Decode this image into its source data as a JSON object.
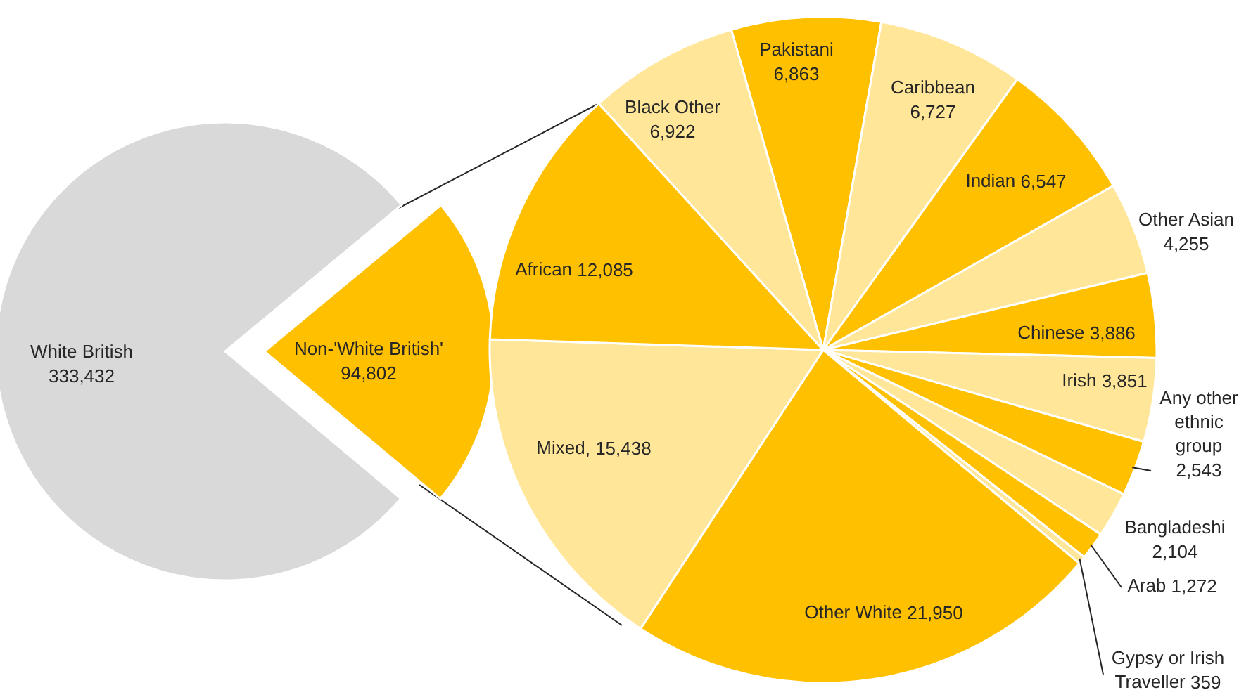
{
  "chart_data": [
    {
      "type": "pie",
      "categories": [
        "White British",
        "Non-'White British'"
      ],
      "values": [
        333432,
        94802
      ],
      "value_labels": [
        "333,432",
        "94,802"
      ],
      "colors": [
        "#d9d9d9",
        "#ffc000"
      ]
    },
    {
      "type": "pie",
      "categories": [
        "Pakistani",
        "Caribbean",
        "Indian",
        "Other Asian",
        "Chinese",
        "Irish",
        "Any other ethnic group",
        "Bangladeshi",
        "Arab",
        "Gypsy or Irish Traveller",
        "Other White",
        "Mixed",
        "African",
        "Black Other"
      ],
      "values": [
        6863,
        6727,
        6547,
        4255,
        3886,
        3851,
        2543,
        2104,
        1272,
        359,
        21950,
        15438,
        12085,
        6922
      ],
      "value_labels": [
        "6,863",
        "6,727",
        "6,547",
        "4,255",
        "3,886",
        "3,851",
        "2,543",
        "2,104",
        "1,272",
        "359",
        "21,950",
        ", 15,438",
        "12,085",
        "6,922"
      ],
      "colors": [
        "#ffc000",
        "#ffe699",
        "#ffc000",
        "#ffe699",
        "#ffc000",
        "#ffe699",
        "#ffc000",
        "#ffe699",
        "#ffc000",
        "#ffe699",
        "#ffc000",
        "#ffe699",
        "#ffc000",
        "#ffe699"
      ]
    }
  ]
}
